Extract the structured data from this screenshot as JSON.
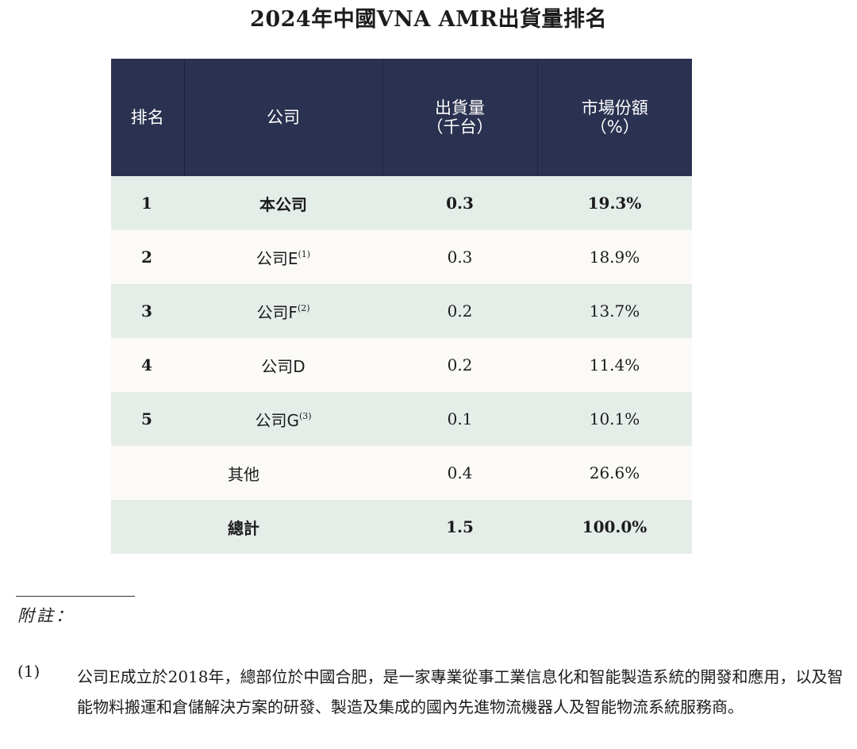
{
  "title": "2024年中國VNA AMR出貨量排名",
  "table": {
    "headers": {
      "rank": "排名",
      "company": "公司",
      "shipments_line1": "出貨量",
      "shipments_line2": "（千台）",
      "share_line1": "市場份額",
      "share_line2": "（%）"
    },
    "rows": [
      {
        "rank": "1",
        "company": "本公司",
        "note": "",
        "shipments": "0.3",
        "share": "19.3%",
        "bold": true
      },
      {
        "rank": "2",
        "company": "公司E",
        "note": "(1)",
        "shipments": "0.3",
        "share": "18.9%",
        "bold": false
      },
      {
        "rank": "3",
        "company": "公司F",
        "note": "(2)",
        "shipments": "0.2",
        "share": "13.7%",
        "bold": false
      },
      {
        "rank": "4",
        "company": "公司D",
        "note": "",
        "shipments": "0.2",
        "share": "11.4%",
        "bold": false
      },
      {
        "rank": "5",
        "company": "公司G",
        "note": "(3)",
        "shipments": "0.1",
        "share": "10.1%",
        "bold": false
      },
      {
        "rank": "",
        "company": "其他",
        "note": "",
        "shipments": "0.4",
        "share": "26.6%",
        "bold": false
      },
      {
        "rank": "",
        "company": "總計",
        "note": "",
        "shipments": "1.5",
        "share": "100.0%",
        "bold": true
      }
    ]
  },
  "notes_label": "附註：",
  "notes": [
    {
      "label": "(1)",
      "text": "公司E成立於2018年，總部位於中國合肥，是一家專業從事工業信息化和智能製造系統的開發和應用，以及智能物料搬運和倉儲解決方案的研發、製造及集成的國內先進物流機器人及智能物流系統服務商。"
    }
  ],
  "colors": {
    "header_bg": "#2b3150",
    "row_odd_bg": "#e5ede9",
    "row_even_bg": "#fbfaf7"
  }
}
